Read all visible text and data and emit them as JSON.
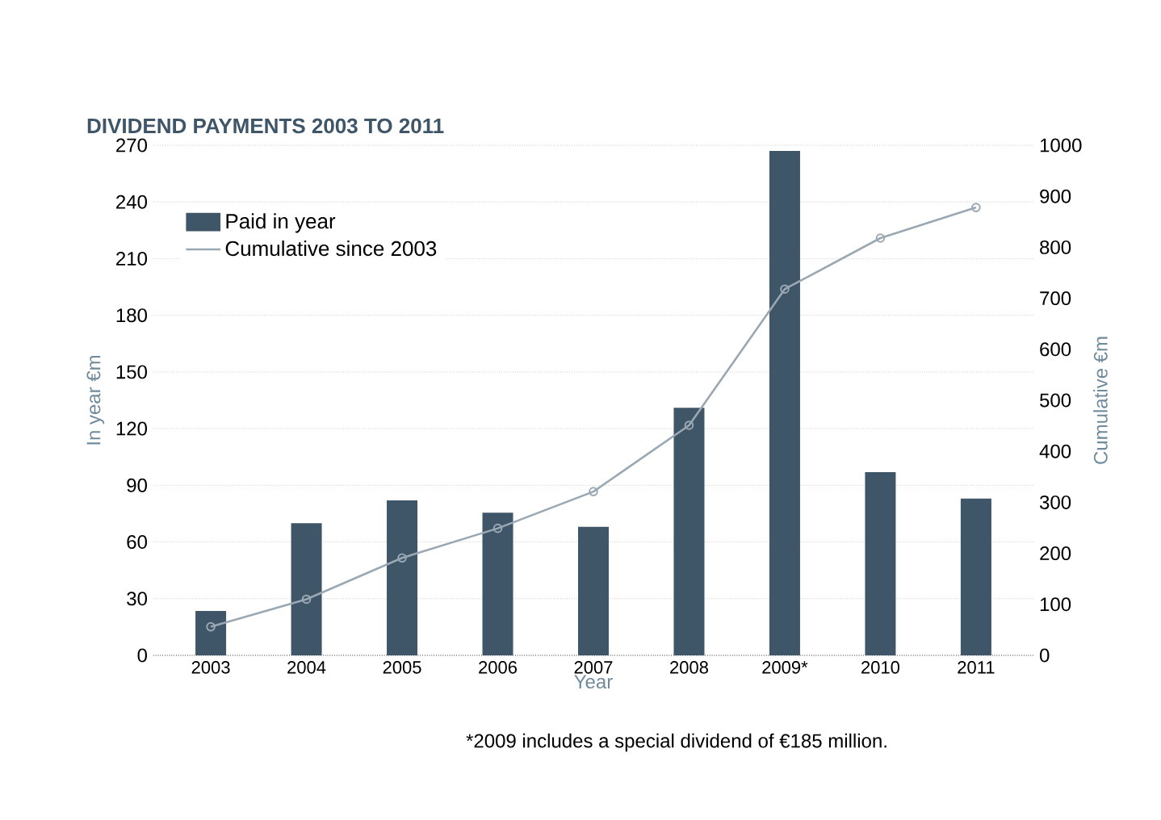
{
  "chart_data": {
    "type": "bar",
    "title": "DIVIDEND PAYMENTS 2003 TO 2011",
    "xlabel": "Year",
    "ylabel": "In year €m",
    "y2label": "Cumulative €m",
    "categories": [
      "2003",
      "2004",
      "2005",
      "2006",
      "2007",
      "2008",
      "2009*",
      "2010",
      "2011"
    ],
    "series": [
      {
        "name": "Paid in year",
        "color": "#3f5568",
        "values": [
          23.5,
          70,
          82,
          75.5,
          68,
          131,
          267,
          97,
          83
        ]
      },
      {
        "name": "Cumulative since 2003",
        "type": "line",
        "axis": "y2",
        "color": "#9aa8b4",
        "marker": "circle",
        "values": [
          56,
          110,
          191,
          249,
          321,
          451,
          718,
          818,
          878
        ]
      }
    ],
    "ylim": [
      0,
      270
    ],
    "yticks": [
      0,
      30,
      60,
      90,
      120,
      150,
      180,
      210,
      240,
      270
    ],
    "y2lim": [
      0,
      1000
    ],
    "y2ticks": [
      0,
      100,
      200,
      300,
      400,
      500,
      600,
      700,
      800,
      900,
      1000
    ],
    "grid": "y",
    "legend": "top left",
    "annotations": [
      "*2009 includes a special dividend of €185 million."
    ]
  }
}
